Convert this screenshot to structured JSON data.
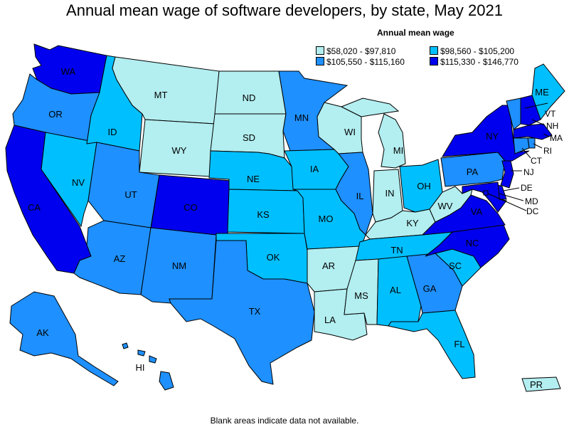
{
  "title": "Annual mean wage of software developers, by state, May 2021",
  "legend": {
    "title": "Annual mean wage",
    "items": [
      {
        "label": "$58,020 - $97,810",
        "color": "#b3eef0"
      },
      {
        "label": "$98,560 - $105,200",
        "color": "#00bfff"
      },
      {
        "label": "$105,550 - $115,160",
        "color": "#1e90ff"
      },
      {
        "label": "$115,330 - $146,770",
        "color": "#0000ee"
      }
    ]
  },
  "colors": {
    "c1": "#b3eef0",
    "c2": "#00bfff",
    "c3": "#1e90ff",
    "c4": "#0000ee"
  },
  "states": [
    {
      "abbr": "WA",
      "bin": 4
    },
    {
      "abbr": "OR",
      "bin": 3
    },
    {
      "abbr": "CA",
      "bin": 4
    },
    {
      "abbr": "NV",
      "bin": 2
    },
    {
      "abbr": "ID",
      "bin": 2
    },
    {
      "abbr": "MT",
      "bin": 1
    },
    {
      "abbr": "WY",
      "bin": 1
    },
    {
      "abbr": "UT",
      "bin": 3
    },
    {
      "abbr": "AZ",
      "bin": 3
    },
    {
      "abbr": "CO",
      "bin": 4
    },
    {
      "abbr": "NM",
      "bin": 3
    },
    {
      "abbr": "ND",
      "bin": 1
    },
    {
      "abbr": "SD",
      "bin": 1
    },
    {
      "abbr": "NE",
      "bin": 2
    },
    {
      "abbr": "KS",
      "bin": 2
    },
    {
      "abbr": "OK",
      "bin": 2
    },
    {
      "abbr": "TX",
      "bin": 3
    },
    {
      "abbr": "MN",
      "bin": 3
    },
    {
      "abbr": "IA",
      "bin": 2
    },
    {
      "abbr": "MO",
      "bin": 2
    },
    {
      "abbr": "AR",
      "bin": 1
    },
    {
      "abbr": "LA",
      "bin": 1
    },
    {
      "abbr": "WI",
      "bin": 1
    },
    {
      "abbr": "IL",
      "bin": 3
    },
    {
      "abbr": "MI",
      "bin": 1
    },
    {
      "abbr": "IN",
      "bin": 1
    },
    {
      "abbr": "OH",
      "bin": 2
    },
    {
      "abbr": "KY",
      "bin": 1
    },
    {
      "abbr": "TN",
      "bin": 2
    },
    {
      "abbr": "MS",
      "bin": 1
    },
    {
      "abbr": "AL",
      "bin": 2
    },
    {
      "abbr": "GA",
      "bin": 3
    },
    {
      "abbr": "FL",
      "bin": 2
    },
    {
      "abbr": "SC",
      "bin": 2
    },
    {
      "abbr": "NC",
      "bin": 4
    },
    {
      "abbr": "VA",
      "bin": 4
    },
    {
      "abbr": "WV",
      "bin": 1
    },
    {
      "abbr": "PA",
      "bin": 3
    },
    {
      "abbr": "NY",
      "bin": 4
    },
    {
      "abbr": "ME",
      "bin": 2
    },
    {
      "abbr": "VT",
      "bin": 3
    },
    {
      "abbr": "NH",
      "bin": 4
    },
    {
      "abbr": "MA",
      "bin": 4
    },
    {
      "abbr": "RI",
      "bin": 3
    },
    {
      "abbr": "CT",
      "bin": 3
    },
    {
      "abbr": "NJ",
      "bin": 4
    },
    {
      "abbr": "DE",
      "bin": 4
    },
    {
      "abbr": "MD",
      "bin": 4
    },
    {
      "abbr": "DC",
      "bin": 4
    },
    {
      "abbr": "AK",
      "bin": 3
    },
    {
      "abbr": "HI",
      "bin": 3
    },
    {
      "abbr": "PR",
      "bin": 1
    }
  ],
  "footer": "Blank areas indicate data not available."
}
